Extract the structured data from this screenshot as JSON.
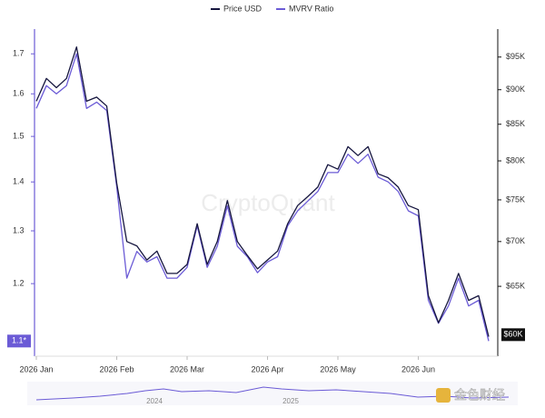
{
  "chart_data": {
    "type": "line",
    "legend_position": "top",
    "watermark": "CryptoQuant",
    "categories": [
      "2026 Jan",
      null,
      null,
      null,
      null,
      null,
      null,
      null,
      "2026 Feb",
      null,
      null,
      null,
      null,
      null,
      null,
      "2026 Mar",
      null,
      null,
      null,
      null,
      null,
      null,
      null,
      "2026 Apr",
      null,
      null,
      null,
      null,
      null,
      null,
      "2026 May",
      null,
      null,
      null,
      null,
      null,
      null,
      null,
      "2026 Jun",
      null,
      null,
      null,
      null,
      null,
      null,
      null
    ],
    "series": [
      {
        "name": "Price USD",
        "color": "#16163f",
        "axis": "y2",
        "values": [
          88300,
          91700,
          90300,
          91700,
          96600,
          88300,
          88900,
          87600,
          77100,
          70000,
          69500,
          67900,
          68900,
          66400,
          66400,
          67400,
          72100,
          67400,
          70000,
          74900,
          70000,
          68400,
          66900,
          67900,
          68900,
          72100,
          74300,
          75400,
          76600,
          79500,
          78900,
          81900,
          80700,
          81900,
          78300,
          77800,
          76600,
          74300,
          73800,
          64000,
          61200,
          63500,
          66400,
          63500,
          64000,
          59800
        ]
      },
      {
        "name": "MVRV Ratio",
        "color": "#6b5bd6",
        "values": [
          1.565,
          1.62,
          1.6,
          1.62,
          1.7,
          1.565,
          1.58,
          1.56,
          1.39,
          1.21,
          1.26,
          1.24,
          1.25,
          1.21,
          1.21,
          1.23,
          1.31,
          1.23,
          1.27,
          1.35,
          1.27,
          1.25,
          1.22,
          1.24,
          1.25,
          1.31,
          1.34,
          1.36,
          1.38,
          1.42,
          1.42,
          1.46,
          1.44,
          1.46,
          1.41,
          1.4,
          1.38,
          1.34,
          1.33,
          1.17,
          1.13,
          1.16,
          1.21,
          1.16,
          1.17,
          1.1
        ]
      }
    ],
    "ylog": true,
    "ylim": [
      1.075,
      1.765
    ],
    "yticks": [
      1.2,
      1.3,
      1.4,
      1.5,
      1.6,
      1.7
    ],
    "y_current": {
      "value": 1.1,
      "label": "1.1*"
    },
    "y2log": true,
    "y2lim": [
      57900,
      99500
    ],
    "y2ticks": [
      {
        "value": 65000,
        "label": "$65K"
      },
      {
        "value": 70000,
        "label": "$70K"
      },
      {
        "value": 75000,
        "label": "$75K"
      },
      {
        "value": 80000,
        "label": "$80K"
      },
      {
        "value": 85000,
        "label": "$85K"
      },
      {
        "value": 90000,
        "label": "$90K"
      },
      {
        "value": 95000,
        "label": "$95K"
      }
    ],
    "y2_current": {
      "value": 60000,
      "label": "$60K"
    },
    "grid": false,
    "navigator_labels": [
      "2024",
      "2025"
    ]
  },
  "logo_text": "金色财经"
}
